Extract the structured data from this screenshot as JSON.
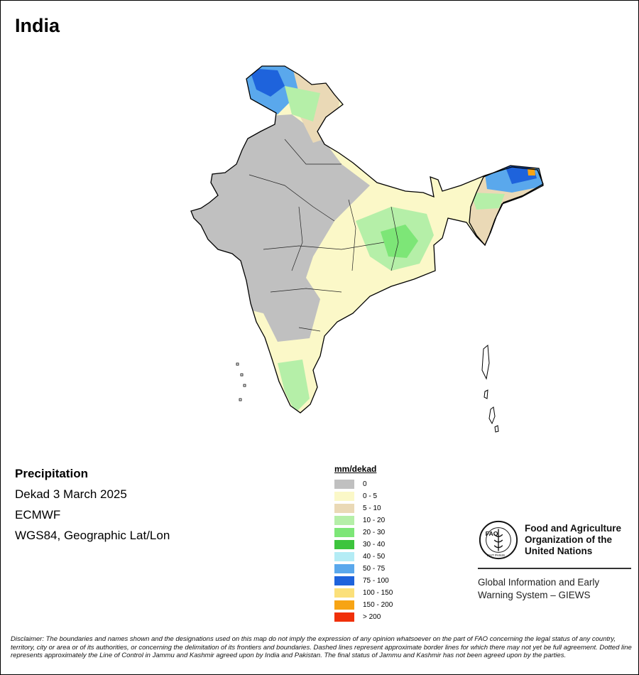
{
  "title": "India",
  "info": {
    "heading": "Precipitation",
    "period": "Dekad 3 March 2025",
    "source": "ECMWF",
    "projection": "WGS84, Geographic Lat/Lon"
  },
  "legend": {
    "unit": "mm/dekad",
    "items": [
      {
        "label": "0",
        "color": "#c0c0c0"
      },
      {
        "label": "0 - 5",
        "color": "#fbf8c8"
      },
      {
        "label": "5 - 10",
        "color": "#ead9b6"
      },
      {
        "label": "10 - 20",
        "color": "#b5efa8"
      },
      {
        "label": "20 - 30",
        "color": "#7de677"
      },
      {
        "label": "30 - 40",
        "color": "#3dc43d"
      },
      {
        "label": "40 - 50",
        "color": "#b4ecf5"
      },
      {
        "label": "50 - 75",
        "color": "#5aa8ec"
      },
      {
        "label": "75 - 100",
        "color": "#1e63dc"
      },
      {
        "label": "100 - 150",
        "color": "#fbe07a"
      },
      {
        "label": "150 - 200",
        "color": "#f7a414"
      },
      {
        "label": "> 200",
        "color": "#f0300a"
      }
    ]
  },
  "fao": {
    "emblem_text": "FAO",
    "emblem_motto": "FIAT PANIS",
    "name_lines": [
      "Food and Agriculture",
      "Organization of the",
      "United Nations"
    ],
    "giews_lines": [
      "Global Information and Early",
      "Warning System – GIEWS"
    ]
  },
  "disclaimer": "Disclaimer: The boundaries and names shown and the designations used on this map do not imply the expression of any opinion whatsoever on the part of FAO concerning the legal status of any country, territory, city or area or of its authorities, or concerning the delimitation of its frontiers and boundaries. Dashed lines represent approximate border lines for which there may not yet be full agreement. Dotted line represents approximately the Line of Control in Jammu and Kashmir agreed upon by India and Pakistan. The final status of Jammu and Kashmir has not been agreed upon by the parties."
}
